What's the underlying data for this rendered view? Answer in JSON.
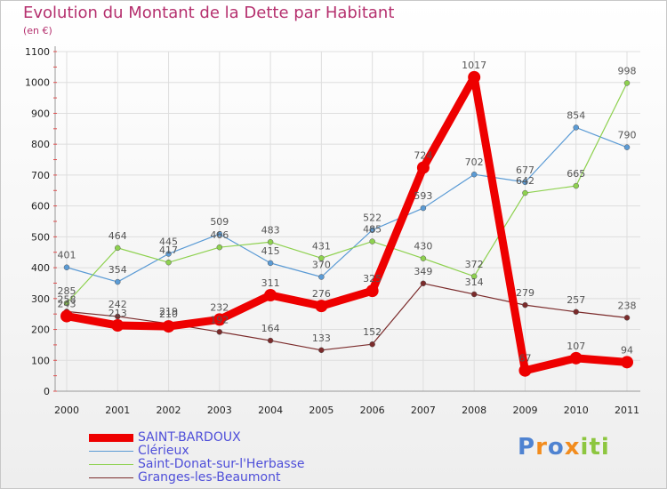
{
  "chart_data": {
    "type": "line",
    "title": "Evolution du Montant de la Dette par Habitant",
    "subtitle": "(en €)",
    "xlabel": "",
    "ylabel": "",
    "ylim": [
      0,
      1100
    ],
    "yticks": [
      "0",
      "100",
      "200",
      "300",
      "400",
      "500",
      "600",
      "700",
      "800",
      "900",
      "1000",
      "1100"
    ],
    "categories": [
      "2000",
      "2001",
      "2002",
      "2003",
      "2004",
      "2005",
      "2006",
      "2007",
      "2008",
      "2009",
      "2010",
      "2011"
    ],
    "series": [
      {
        "name": "SAINT-BARDOUX",
        "color": "#ee0000",
        "values": [
          243,
          213,
          210,
          232,
          311,
          276,
          325,
          724,
          1017,
          67,
          107,
          94
        ]
      },
      {
        "name": "Clérieux",
        "color": "#5b9bd5",
        "values": [
          401,
          354,
          445,
          509,
          415,
          370,
          522,
          593,
          702,
          677,
          854,
          790
        ]
      },
      {
        "name": "Saint-Donat-sur-l'Herbasse",
        "color": "#8ed14f",
        "values": [
          285,
          464,
          417,
          466,
          483,
          431,
          485,
          430,
          372,
          642,
          665,
          998
        ]
      },
      {
        "name": "Granges-les-Beaumont",
        "color": "#7b2b2b",
        "values": [
          258,
          242,
          219,
          192,
          164,
          133,
          152,
          349,
          314,
          279,
          257,
          238
        ]
      }
    ]
  },
  "logo": {
    "letters": [
      "P",
      "r",
      "o",
      "x",
      "i",
      "t",
      "i"
    ],
    "colors": [
      "#4f83d1",
      "#f28c1e",
      "#4f83d1",
      "#f28c1e",
      "#8dc63f",
      "#8dc63f",
      "#8dc63f"
    ]
  }
}
